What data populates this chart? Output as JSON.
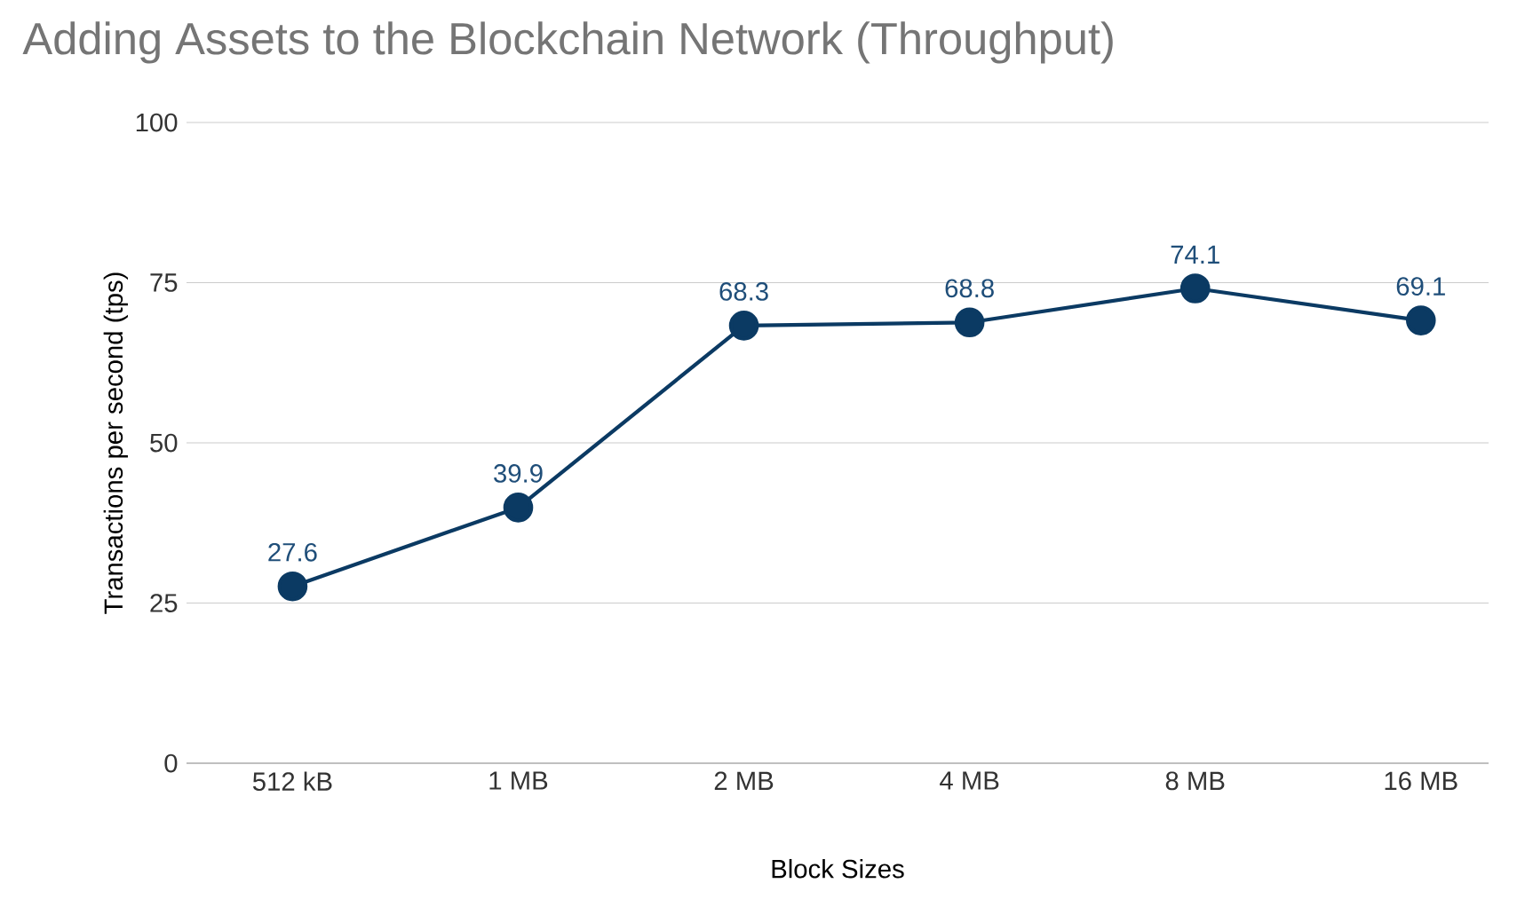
{
  "chart_data": {
    "type": "line",
    "title": "Adding Assets to the Blockchain Network (Throughput)",
    "xlabel": "Block Sizes",
    "ylabel": "Transactions per second (tps)",
    "categories": [
      "512 kB",
      "1 MB",
      "2 MB",
      "4 MB",
      "8 MB",
      "16 MB"
    ],
    "values": [
      27.6,
      39.9,
      68.3,
      68.8,
      74.1,
      69.1
    ],
    "color": "#0b3a63",
    "marker": "circle",
    "data_labels": true,
    "ylim": [
      0,
      100
    ],
    "yticks": [
      0,
      25,
      50,
      75,
      100
    ],
    "grid": "y"
  }
}
